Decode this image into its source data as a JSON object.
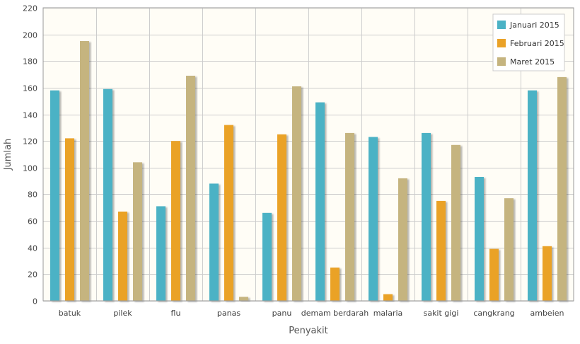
{
  "chart_data": {
    "type": "bar",
    "title": "",
    "xlabel": "Penyakit",
    "ylabel": "Jumlah",
    "ylim": [
      0,
      220
    ],
    "yticks": [
      0,
      20,
      40,
      60,
      80,
      100,
      120,
      140,
      160,
      180,
      200,
      220
    ],
    "grid": true,
    "legend_position": "top-right",
    "categories": [
      "batuk",
      "pilek",
      "flu",
      "panas",
      "panu",
      "demam berdarah",
      "malaria",
      "sakit gigi",
      "cangkrang",
      "ambeien"
    ],
    "series": [
      {
        "name": "Januari 2015",
        "color": "#4BB2C5",
        "values": [
          158,
          159,
          71,
          88,
          66,
          149,
          123,
          126,
          93,
          158
        ]
      },
      {
        "name": "Februari 2015",
        "color": "#EAA228",
        "values": [
          122,
          67,
          120,
          132,
          125,
          25,
          5,
          75,
          39,
          41
        ]
      },
      {
        "name": "Maret 2015",
        "color": "#C5B47F",
        "values": [
          195,
          104,
          169,
          3,
          161,
          126,
          92,
          117,
          77,
          168
        ]
      }
    ],
    "plot_background": "#FFFDF6",
    "grid_color": "#CCCCCC"
  }
}
